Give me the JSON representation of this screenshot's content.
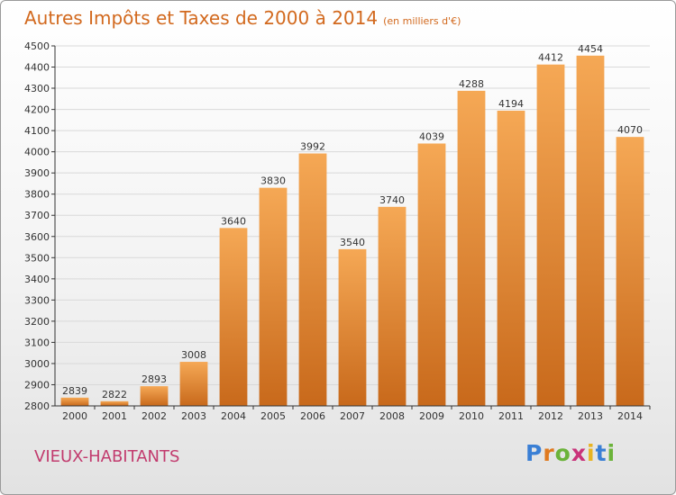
{
  "title": "Autres Impôts et Taxes de 2000 à 2014",
  "unit": "(en milliers d'€)",
  "place": "VIEUX-HABITANTS",
  "logo": {
    "letters": [
      "P",
      "r",
      "o",
      "x",
      "i",
      "t",
      "i"
    ],
    "colors": [
      "#3a7fd5",
      "#e07a1f",
      "#6bb33a",
      "#c9327a",
      "#e8b422",
      "#3a7fd5",
      "#6bb33a"
    ]
  },
  "colors": {
    "bar_light": "#f5a855",
    "bar_dark": "#c8691b",
    "grid": "#d9d9d9",
    "axis": "#333333",
    "title": "#d2691e",
    "place": "#c23b6e"
  },
  "chart_data": {
    "type": "bar",
    "categories": [
      "2000",
      "2001",
      "2002",
      "2003",
      "2004",
      "2005",
      "2006",
      "2007",
      "2008",
      "2009",
      "2010",
      "2011",
      "2012",
      "2013",
      "2014"
    ],
    "values": [
      2839,
      2822,
      2893,
      3008,
      3640,
      3830,
      3992,
      3540,
      3740,
      4039,
      4288,
      4194,
      4412,
      4454,
      4070
    ],
    "ylim": [
      2800,
      4500
    ],
    "yticks": [
      2800,
      2900,
      3000,
      3100,
      3200,
      3300,
      3400,
      3500,
      3600,
      3700,
      3800,
      3900,
      4000,
      4100,
      4200,
      4300,
      4400,
      4500
    ],
    "grid": true,
    "xlabel": "",
    "ylabel": ""
  }
}
